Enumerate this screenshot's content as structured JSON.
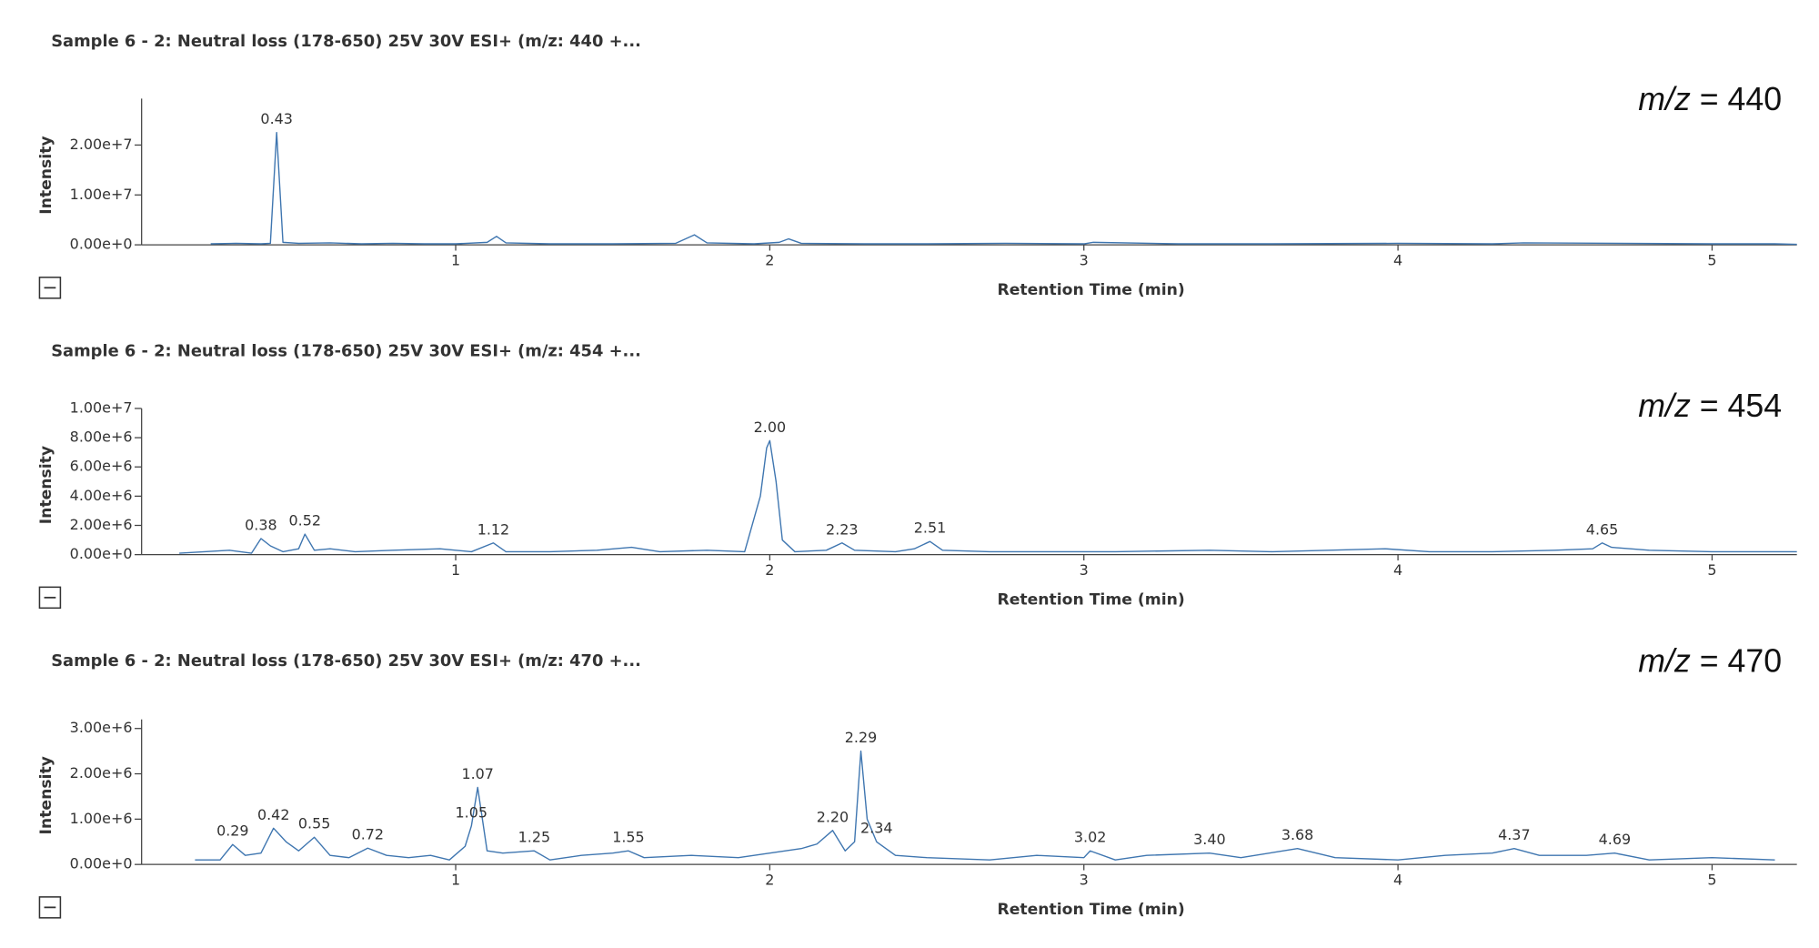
{
  "chart_data": [
    {
      "type": "line",
      "title": "Sample 6 - 2: Neutral loss (178-650) 25V 30V ESI+ (m/z: 440 +...",
      "tag_variable": "m/z",
      "tag_value": "= 440",
      "xlabel": "Retention Time (min)",
      "ylabel": "Intensity",
      "xlim": [
        0,
        5.27
      ],
      "ylim": [
        0,
        29300000
      ],
      "xticks": [
        1,
        2,
        3,
        4,
        5
      ],
      "yticks": [
        {
          "value": 0,
          "label": "0.00e+0"
        },
        {
          "value": 10000000,
          "label": "1.00e+7"
        },
        {
          "value": 20000000,
          "label": "2.00e+7"
        }
      ],
      "x": [
        0.22,
        0.3,
        0.38,
        0.41,
        0.43,
        0.45,
        0.5,
        0.6,
        0.7,
        0.8,
        0.9,
        1.0,
        1.1,
        1.13,
        1.16,
        1.3,
        1.5,
        1.7,
        1.76,
        1.8,
        1.95,
        2.03,
        2.06,
        2.1,
        2.3,
        2.5,
        2.75,
        3.0,
        3.03,
        3.3,
        3.6,
        4.0,
        4.3,
        4.4,
        4.7,
        5.0,
        5.2,
        5.27
      ],
      "series": [
        {
          "color": "#3f76b0",
          "values": [
            200000,
            300000,
            200000,
            300000,
            22500000,
            500000,
            300000,
            400000,
            200000,
            300000,
            200000,
            200000,
            500000,
            1700000,
            400000,
            200000,
            200000,
            300000,
            2000000,
            400000,
            200000,
            500000,
            1200000,
            300000,
            200000,
            200000,
            300000,
            200000,
            500000,
            200000,
            200000,
            300000,
            200000,
            400000,
            300000,
            200000,
            200000,
            100000
          ]
        }
      ],
      "peak_labels": [
        {
          "x": 0.43,
          "y": 22500000,
          "label": "0.43"
        }
      ]
    },
    {
      "type": "line",
      "title": "Sample 6 - 2: Neutral loss (178-650) 25V 30V ESI+ (m/z: 454 +...",
      "tag_variable": "m/z",
      "tag_value": "= 454",
      "xlabel": "Retention Time (min)",
      "ylabel": "Intensity",
      "xlim": [
        0,
        5.27
      ],
      "ylim": [
        0,
        10000000
      ],
      "xticks": [
        1,
        2,
        3,
        4,
        5
      ],
      "yticks": [
        {
          "value": 0,
          "label": "0.00e+0"
        },
        {
          "value": 2000000,
          "label": "2.00e+6"
        },
        {
          "value": 4000000,
          "label": "4.00e+6"
        },
        {
          "value": 6000000,
          "label": "6.00e+6"
        },
        {
          "value": 8000000,
          "label": "8.00e+6"
        },
        {
          "value": 10000000,
          "label": "1.00e+7"
        }
      ],
      "x": [
        0.12,
        0.2,
        0.28,
        0.35,
        0.38,
        0.41,
        0.45,
        0.5,
        0.52,
        0.55,
        0.6,
        0.68,
        0.8,
        0.95,
        1.05,
        1.12,
        1.16,
        1.3,
        1.45,
        1.56,
        1.65,
        1.8,
        1.92,
        1.97,
        1.99,
        2.0,
        2.02,
        2.04,
        2.08,
        2.18,
        2.23,
        2.27,
        2.4,
        2.46,
        2.51,
        2.55,
        2.7,
        2.9,
        3.1,
        3.4,
        3.6,
        3.96,
        4.1,
        4.3,
        4.5,
        4.62,
        4.65,
        4.68,
        4.8,
        5.0,
        5.15,
        5.27
      ],
      "series": [
        {
          "color": "#3f76b0",
          "values": [
            100000,
            200000,
            300000,
            100000,
            1100000,
            600000,
            200000,
            400000,
            1400000,
            300000,
            400000,
            200000,
            300000,
            400000,
            200000,
            800000,
            200000,
            200000,
            300000,
            500000,
            200000,
            300000,
            200000,
            4000000,
            7300000,
            7800000,
            5000000,
            1000000,
            200000,
            300000,
            800000,
            300000,
            200000,
            400000,
            900000,
            300000,
            200000,
            200000,
            200000,
            300000,
            200000,
            400000,
            200000,
            200000,
            300000,
            400000,
            800000,
            500000,
            300000,
            200000,
            200000,
            200000
          ]
        }
      ],
      "peak_labels": [
        {
          "x": 0.38,
          "y": 1100000,
          "label": "0.38"
        },
        {
          "x": 0.52,
          "y": 1400000,
          "label": "0.52"
        },
        {
          "x": 1.12,
          "y": 800000,
          "label": "1.12"
        },
        {
          "x": 2.0,
          "y": 7800000,
          "label": "2.00"
        },
        {
          "x": 2.23,
          "y": 800000,
          "label": "2.23"
        },
        {
          "x": 2.51,
          "y": 900000,
          "label": "2.51"
        },
        {
          "x": 4.65,
          "y": 800000,
          "label": "4.65"
        }
      ]
    },
    {
      "type": "line",
      "title": "Sample 6 - 2: Neutral loss (178-650) 25V 30V ESI+ (m/z: 470 +...",
      "tag_variable": "m/z",
      "tag_value": "= 470",
      "xlabel": "Retention Time (min)",
      "ylabel": "Intensity",
      "xlim": [
        0,
        5.27
      ],
      "ylim": [
        0,
        3200000
      ],
      "xticks": [
        1,
        2,
        3,
        4,
        5
      ],
      "yticks": [
        {
          "value": 0,
          "label": "0.00e+0"
        },
        {
          "value": 1000000,
          "label": "1.00e+6"
        },
        {
          "value": 2000000,
          "label": "2.00e+6"
        },
        {
          "value": 3000000,
          "label": "3.00e+6"
        }
      ],
      "x": [
        0.17,
        0.25,
        0.29,
        0.33,
        0.38,
        0.42,
        0.46,
        0.5,
        0.55,
        0.6,
        0.66,
        0.72,
        0.78,
        0.85,
        0.92,
        0.98,
        1.03,
        1.05,
        1.07,
        1.1,
        1.15,
        1.25,
        1.3,
        1.4,
        1.5,
        1.55,
        1.6,
        1.75,
        1.9,
        2.0,
        2.1,
        2.15,
        2.2,
        2.24,
        2.27,
        2.29,
        2.31,
        2.34,
        2.4,
        2.5,
        2.7,
        2.85,
        3.0,
        3.02,
        3.1,
        3.2,
        3.4,
        3.5,
        3.68,
        3.8,
        4.0,
        4.15,
        4.3,
        4.37,
        4.45,
        4.6,
        4.69,
        4.8,
        5.0,
        5.2
      ],
      "series": [
        {
          "color": "#3f76b0",
          "values": [
            100000,
            100000,
            440000,
            200000,
            250000,
            800000,
            500000,
            300000,
            600000,
            200000,
            150000,
            360000,
            200000,
            150000,
            200000,
            100000,
            400000,
            850000,
            1700000,
            300000,
            250000,
            300000,
            100000,
            200000,
            250000,
            300000,
            150000,
            200000,
            150000,
            250000,
            350000,
            450000,
            750000,
            300000,
            500000,
            2500000,
            1000000,
            500000,
            200000,
            150000,
            100000,
            200000,
            150000,
            300000,
            100000,
            200000,
            250000,
            150000,
            350000,
            150000,
            100000,
            200000,
            250000,
            350000,
            200000,
            200000,
            250000,
            100000,
            150000,
            100000
          ]
        }
      ],
      "peak_labels": [
        {
          "x": 0.29,
          "y": 440000,
          "label": "0.29"
        },
        {
          "x": 0.42,
          "y": 800000,
          "label": "0.42"
        },
        {
          "x": 0.55,
          "y": 600000,
          "label": "0.55"
        },
        {
          "x": 0.72,
          "y": 360000,
          "label": "0.72"
        },
        {
          "x": 1.05,
          "y": 850000,
          "label": "1.05"
        },
        {
          "x": 1.07,
          "y": 1700000,
          "label": "1.07"
        },
        {
          "x": 1.25,
          "y": 300000,
          "label": "1.25"
        },
        {
          "x": 1.55,
          "y": 300000,
          "label": "1.55"
        },
        {
          "x": 2.2,
          "y": 750000,
          "label": "2.20"
        },
        {
          "x": 2.29,
          "y": 2500000,
          "label": "2.29"
        },
        {
          "x": 2.34,
          "y": 500000,
          "label": "2.34"
        },
        {
          "x": 3.02,
          "y": 300000,
          "label": "3.02"
        },
        {
          "x": 3.4,
          "y": 250000,
          "label": "3.40"
        },
        {
          "x": 3.68,
          "y": 350000,
          "label": "3.68"
        },
        {
          "x": 4.37,
          "y": 350000,
          "label": "4.37"
        },
        {
          "x": 4.69,
          "y": 250000,
          "label": "4.69"
        }
      ]
    }
  ]
}
